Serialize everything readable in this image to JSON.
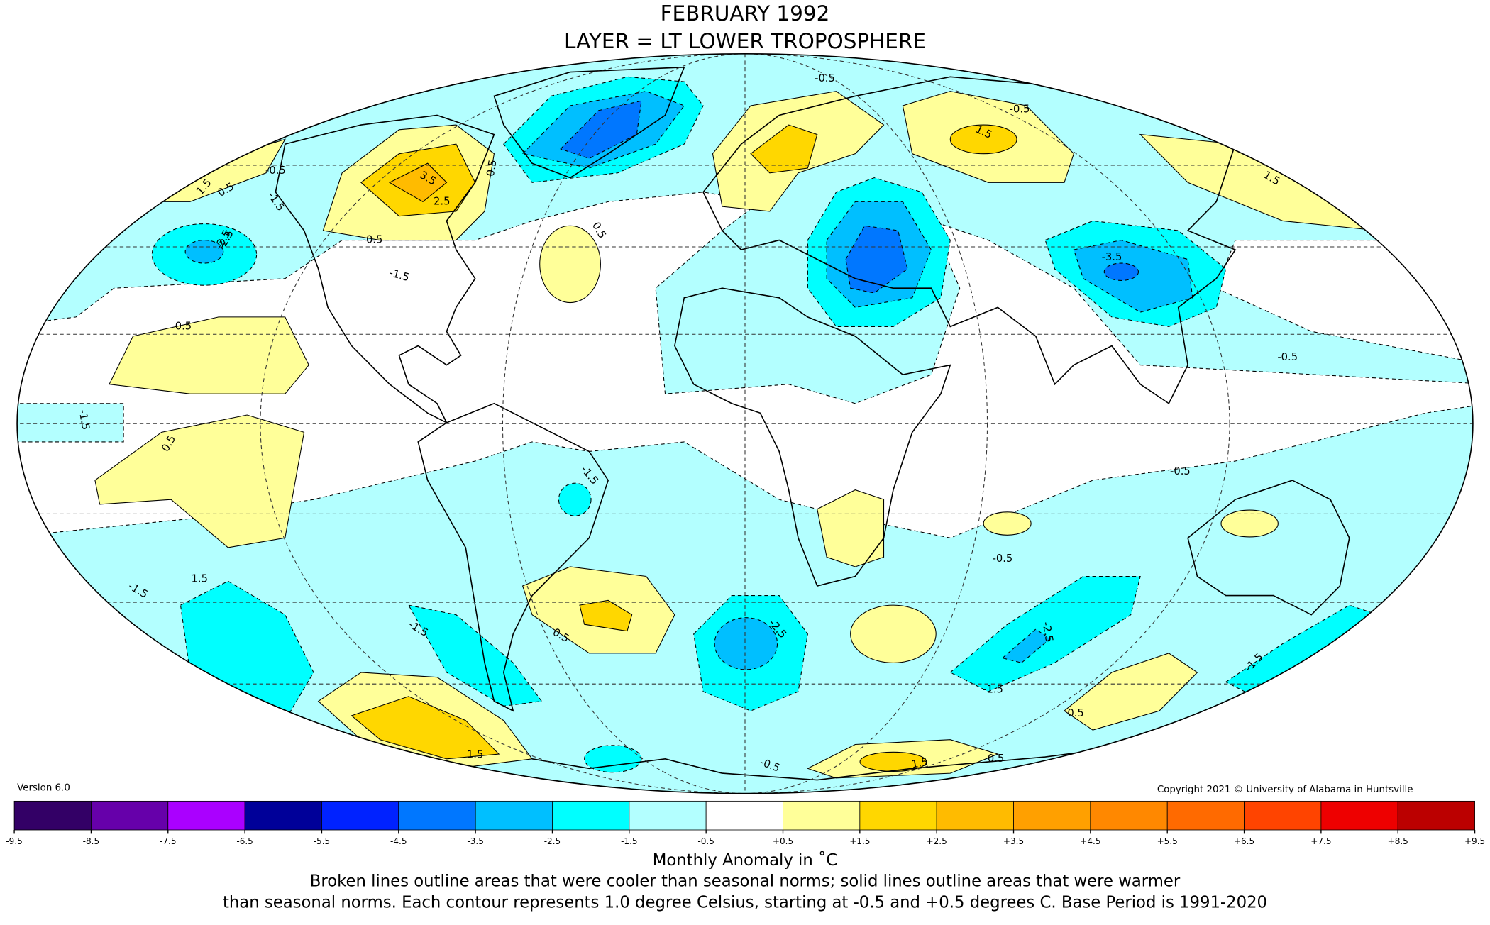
{
  "header": {
    "title_lines": [
      "FEBRUARY 1992",
      "LAYER = LT LOWER TROPOSPHERE"
    ]
  },
  "map": {
    "contour_labels": [
      "1.5",
      "0.5",
      "-0.5",
      "-1.5",
      "-2.5",
      "3.5",
      "2.5",
      "-0.5",
      "-1.5",
      "0.5",
      "-0.5",
      "0.5",
      "-0.5",
      "0.5",
      "-1.5",
      "-1.5",
      "1.5",
      "-2.5",
      "-1.5",
      "0.5",
      "-1.5",
      "-2.5",
      "0.5",
      "-0.5",
      "1.5",
      "1.5",
      "-3.5",
      "-0.5",
      "-0.5",
      "0.5",
      "-2.5",
      "1.5",
      "0.5",
      "-1.5",
      "1.5",
      "-0.5",
      "-1.5"
    ]
  },
  "version": "Version 6.0",
  "copyright": "Copyright 2021 © University of Alabama in Huntsville",
  "colorbar": {
    "colors": [
      "#330066",
      "#6600aa",
      "#aa00ff",
      "#000099",
      "#0022ff",
      "#0077ff",
      "#00bfff",
      "#00ffff",
      "#b3ffff",
      "#ffffff",
      "#ffff99",
      "#ffd700",
      "#ffbb00",
      "#ffa000",
      "#ff8800",
      "#ff6a00",
      "#ff4400",
      "#ee0000",
      "#bb0000"
    ],
    "ticks": [
      "-9.5",
      "-8.5",
      "-7.5",
      "-6.5",
      "-5.5",
      "-4.5",
      "-3.5",
      "-2.5",
      "-1.5",
      "-0.5",
      "+0.5",
      "+1.5",
      "+2.5",
      "+3.5",
      "+4.5",
      "+5.5",
      "+6.5",
      "+7.5",
      "+8.5",
      "+9.5"
    ],
    "label": "Monthly Anomaly in ˚C"
  },
  "caption_lines": [
    "Broken lines outline areas that were cooler than seasonal norms; solid lines outline areas that were warmer",
    "than seasonal norms. Each contour represents 1.0 degree Celsius, starting at -0.5 and +0.5 degrees C. Base Period is 1991-2020"
  ]
}
